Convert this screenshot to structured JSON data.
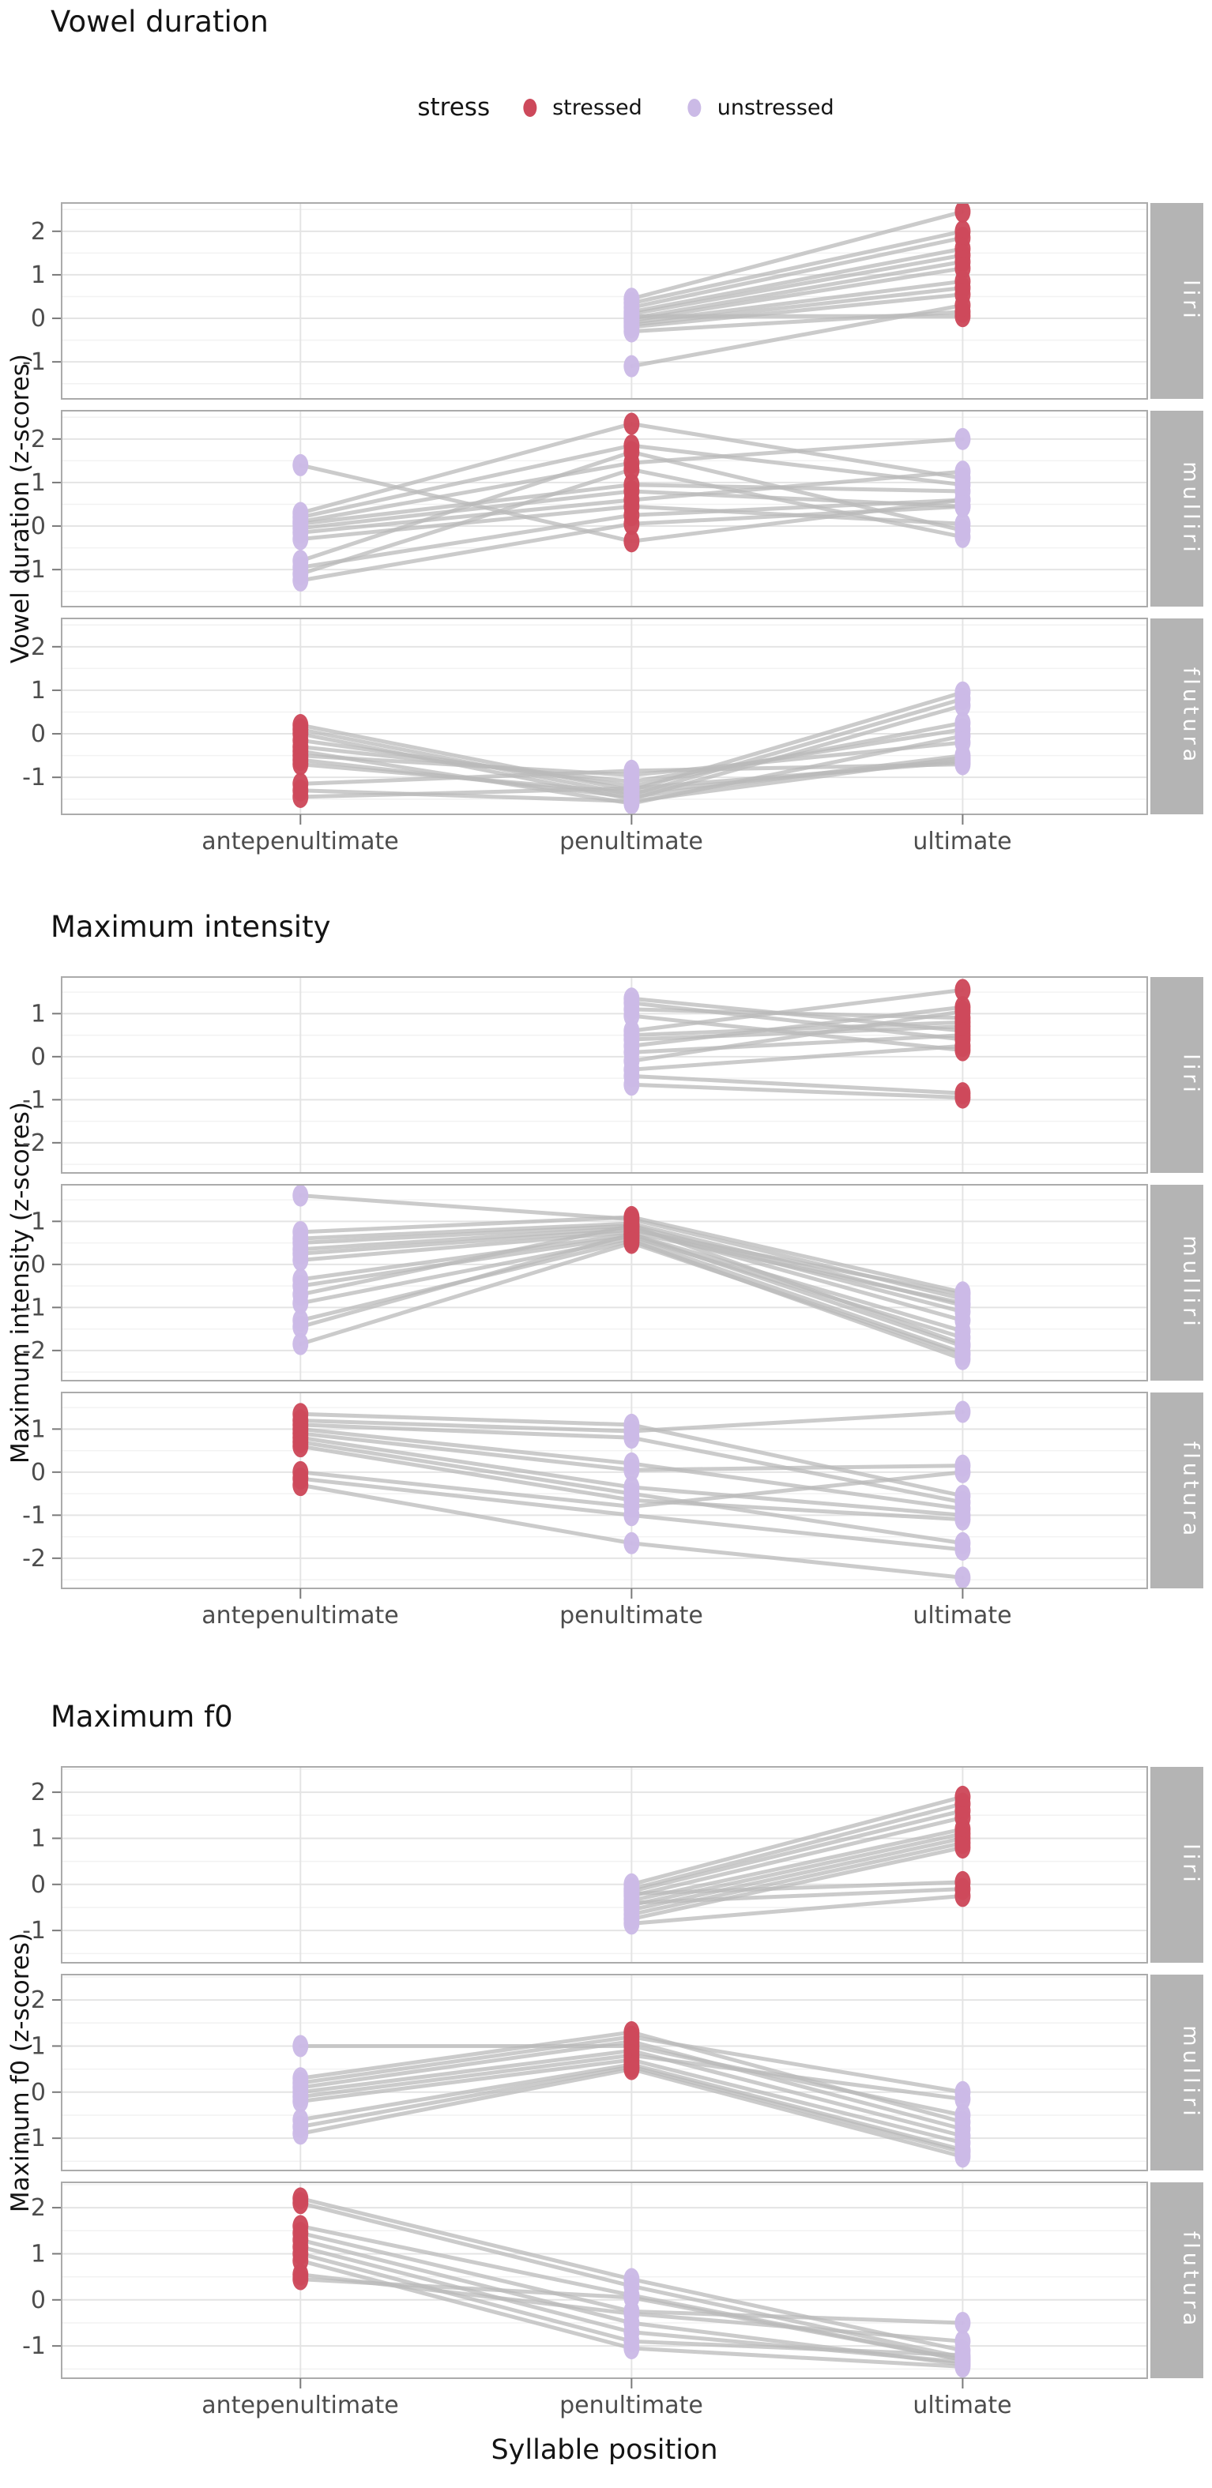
{
  "legend": {
    "title": "stress",
    "items": [
      {
        "label": "stressed",
        "color": "#cd495b"
      },
      {
        "label": "unstressed",
        "color": "#cbbae6"
      }
    ]
  },
  "x_axis": {
    "title": "Syllable position",
    "categories": [
      "antepenultimate",
      "penultimate",
      "ultimate"
    ]
  },
  "style": {
    "stressed_color": "#cd495b",
    "unstressed_color": "#cbbae6",
    "line_color": "#b9b9b9",
    "strip_bg": "#b4b4b4",
    "strip_text": "#ffffff",
    "grid_major": "#e4e4e4",
    "grid_minor": "#f2f2f2",
    "panel_border": "#ababab",
    "tick_color": "#7a7a7a",
    "axis_text": "#4d4d4d"
  },
  "chart_data": [
    {
      "type": "line",
      "title": "Vowel duration",
      "ylabel": "Vowel duration (z-scores)",
      "yticks": [
        2,
        1,
        0,
        -1
      ],
      "ylim": [
        -1.85,
        2.65
      ],
      "facets": [
        {
          "label": "liri",
          "stressed": "ultimate",
          "categories": [
            "penultimate",
            "ultimate"
          ],
          "series": [
            [
              0.45,
              2.45
            ],
            [
              0.35,
              2.0
            ],
            [
              0.25,
              1.85
            ],
            [
              0.15,
              1.6
            ],
            [
              0.1,
              1.45
            ],
            [
              0.0,
              1.3
            ],
            [
              -0.05,
              1.15
            ],
            [
              -0.1,
              0.85
            ],
            [
              -0.15,
              0.7
            ],
            [
              -0.2,
              0.55
            ],
            [
              0.05,
              0.05
            ],
            [
              -0.3,
              0.15
            ],
            [
              -1.1,
              0.3
            ]
          ]
        },
        {
          "label": "mulliri",
          "stressed": "penultimate",
          "categories": [
            "antepenultimate",
            "penultimate",
            "ultimate"
          ],
          "series": [
            [
              1.4,
              -0.35,
              0.6
            ],
            [
              0.3,
              2.35,
              1.1
            ],
            [
              0.2,
              1.85,
              0.95
            ],
            [
              0.1,
              1.45,
              2.0
            ],
            [
              0.05,
              0.95,
              0.8
            ],
            [
              -0.05,
              0.8,
              0.45
            ],
            [
              -0.15,
              0.6,
              1.25
            ],
            [
              -0.3,
              0.45,
              0.05
            ],
            [
              -0.8,
              1.7,
              -0.1
            ],
            [
              -0.95,
              0.25,
              0.6
            ],
            [
              -1.1,
              1.3,
              -0.25
            ],
            [
              -1.25,
              0.05,
              0.45
            ]
          ]
        },
        {
          "label": "flutura",
          "stressed": "antepenultimate",
          "categories": [
            "antepenultimate",
            "penultimate",
            "ultimate"
          ],
          "series": [
            [
              0.2,
              -1.3,
              0.95
            ],
            [
              0.1,
              -1.4,
              0.8
            ],
            [
              0.0,
              -1.5,
              0.65
            ],
            [
              -0.15,
              -1.2,
              0.25
            ],
            [
              -0.3,
              -1.1,
              0.1
            ],
            [
              -0.4,
              -1.6,
              -0.05
            ],
            [
              -0.5,
              -0.95,
              -0.2
            ],
            [
              -0.6,
              -1.45,
              -0.5
            ],
            [
              -0.7,
              -1.35,
              -0.6
            ],
            [
              -1.15,
              -0.85,
              -0.7
            ],
            [
              -1.3,
              -1.55,
              -0.55
            ],
            [
              -1.45,
              -1.25,
              -0.65
            ]
          ]
        }
      ]
    },
    {
      "type": "line",
      "title": "Maximum intensity",
      "ylabel": "Maximum intensity (z-scores)",
      "yticks": [
        1,
        0,
        -1,
        -2
      ],
      "ylim": [
        -2.7,
        1.85
      ],
      "facets": [
        {
          "label": "liri",
          "stressed": "ultimate",
          "categories": [
            "penultimate",
            "ultimate"
          ],
          "series": [
            [
              1.35,
              0.6
            ],
            [
              1.25,
              0.4
            ],
            [
              1.1,
              0.9
            ],
            [
              0.95,
              0.15
            ],
            [
              0.6,
              1.55
            ],
            [
              0.5,
              0.8
            ],
            [
              0.4,
              0.7
            ],
            [
              0.25,
              1.15
            ],
            [
              0.1,
              0.5
            ],
            [
              -0.1,
              1.05
            ],
            [
              -0.3,
              0.25
            ],
            [
              -0.45,
              -0.85
            ],
            [
              -0.65,
              -0.95
            ]
          ]
        },
        {
          "label": "mulliri",
          "stressed": "penultimate",
          "categories": [
            "antepenultimate",
            "penultimate",
            "ultimate"
          ],
          "series": [
            [
              1.6,
              1.05,
              -0.8
            ],
            [
              0.75,
              1.1,
              -0.65
            ],
            [
              0.6,
              0.95,
              -0.95
            ],
            [
              0.5,
              0.9,
              -1.1
            ],
            [
              0.35,
              0.85,
              -1.3
            ],
            [
              0.25,
              0.8,
              -0.7
            ],
            [
              0.1,
              0.75,
              -0.9
            ],
            [
              -0.35,
              0.7,
              -1.55
            ],
            [
              -0.5,
              0.65,
              -1.7
            ],
            [
              -0.7,
              0.9,
              -1.85
            ],
            [
              -0.9,
              0.6,
              -2.05
            ],
            [
              -1.3,
              0.55,
              -2.2
            ],
            [
              -1.45,
              0.7,
              -1.9
            ],
            [
              -1.85,
              0.5,
              -2.1
            ]
          ]
        },
        {
          "label": "flutura",
          "stressed": "antepenultimate",
          "categories": [
            "antepenultimate",
            "penultimate",
            "ultimate"
          ],
          "series": [
            [
              1.35,
              1.1,
              -0.55
            ],
            [
              1.2,
              0.95,
              1.4
            ],
            [
              1.1,
              0.8,
              -0.7
            ],
            [
              1.0,
              0.2,
              -0.85
            ],
            [
              0.9,
              0.05,
              0.15
            ],
            [
              0.8,
              -0.35,
              -1.0
            ],
            [
              0.7,
              -0.5,
              -1.65
            ],
            [
              0.6,
              -0.65,
              -1.1
            ],
            [
              0.0,
              -0.8,
              0.0
            ],
            [
              -0.15,
              -1.0,
              -1.8
            ],
            [
              -0.3,
              -1.65,
              -2.45
            ]
          ]
        }
      ]
    },
    {
      "type": "line",
      "title": "Maximum f0",
      "ylabel": "Maximum f0 (z-scores)",
      "yticks": [
        2,
        1,
        0,
        -1
      ],
      "ylim": [
        -1.7,
        2.55
      ],
      "facets": [
        {
          "label": "liri",
          "stressed": "ultimate",
          "categories": [
            "penultimate",
            "ultimate"
          ],
          "series": [
            [
              0.0,
              1.9
            ],
            [
              -0.1,
              1.75
            ],
            [
              -0.15,
              1.6
            ],
            [
              -0.25,
              1.45
            ],
            [
              -0.35,
              1.2
            ],
            [
              -0.45,
              1.1
            ],
            [
              -0.55,
              1.0
            ],
            [
              -0.65,
              0.9
            ],
            [
              -0.75,
              0.8
            ],
            [
              -0.2,
              0.05
            ],
            [
              -0.4,
              -0.1
            ],
            [
              -0.85,
              -0.25
            ]
          ]
        },
        {
          "label": "mulliri",
          "stressed": "penultimate",
          "categories": [
            "antepenultimate",
            "penultimate",
            "ultimate"
          ],
          "series": [
            [
              1.0,
              1.0,
              -0.5
            ],
            [
              0.3,
              1.3,
              -0.65
            ],
            [
              0.2,
              1.2,
              0.0
            ],
            [
              0.1,
              1.1,
              -0.8
            ],
            [
              0.0,
              0.9,
              -0.95
            ],
            [
              -0.1,
              0.8,
              -0.15
            ],
            [
              -0.2,
              0.7,
              -1.1
            ],
            [
              -0.6,
              0.6,
              -1.25
            ],
            [
              -0.75,
              0.55,
              -1.3
            ],
            [
              -0.9,
              0.5,
              -1.4
            ]
          ]
        },
        {
          "label": "flutura",
          "stressed": "antepenultimate",
          "categories": [
            "antepenultimate",
            "penultimate",
            "ultimate"
          ],
          "series": [
            [
              2.2,
              0.45,
              -1.1
            ],
            [
              2.1,
              0.3,
              -1.25
            ],
            [
              1.6,
              0.1,
              -1.3
            ],
            [
              1.45,
              -0.25,
              -0.5
            ],
            [
              1.3,
              -0.5,
              -1.4
            ],
            [
              1.15,
              -0.7,
              -1.35
            ],
            [
              1.0,
              -0.9,
              -1.2
            ],
            [
              0.85,
              -1.05,
              -1.45
            ],
            [
              0.55,
              -0.3,
              -0.9
            ],
            [
              0.45,
              0.05,
              -1.3
            ]
          ]
        }
      ]
    }
  ]
}
